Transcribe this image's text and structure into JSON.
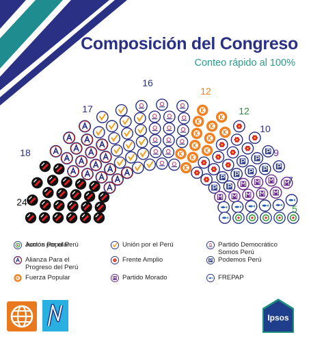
{
  "header": {
    "title": "Composición del Congreso",
    "subtitle": "Conteo rápido al 100%"
  },
  "colors": {
    "stripe_navy": "#2a3184",
    "stripe_teal": "#1f8d90",
    "title": "#2a3184",
    "subtitle": "#2a9a8a"
  },
  "chart_data": {
    "type": "parliament",
    "title": "Composición del Congreso",
    "subtitle": "Conteo rápido al 100%",
    "total_seats": 130,
    "series": [
      {
        "name": "Acción Popular",
        "seats": 24,
        "color": "#1a1a1a",
        "icon": "black-shovel-icon"
      },
      {
        "name": "Alianza Para el\nProgreso del Perú",
        "seats": 18,
        "color": "#2a3184",
        "icon": "app-a-icon"
      },
      {
        "name": "Unión por el Perú",
        "seats": 17,
        "color": "#f0a01e",
        "icon": "check-mark-icon"
      },
      {
        "name": "Partido Democrático\nSomos Perú",
        "seats": 16,
        "color": "#1f4e8c",
        "icon": "sun-logo-icon"
      },
      {
        "name": "Fuerza Popular",
        "seats": 12,
        "color": "#f08020",
        "icon": "k-icon"
      },
      {
        "name": "Frente Amplio",
        "seats": 12,
        "color": "#2e8b3d",
        "icon": "red-flower-icon"
      },
      {
        "name": "Podemos Perú",
        "seats": 10,
        "color": "#2f3f8c",
        "icon": "p-icon"
      },
      {
        "name": "Partido Morado",
        "seats": 9,
        "color": "#6a2a8c",
        "icon": "purple-m-icon"
      },
      {
        "name": "FREPAP",
        "seats": 7,
        "color": "#1f5fae",
        "icon": "fish-icon"
      },
      {
        "name": "Juntos por el Perú",
        "seats": 5,
        "color": "#2e9b3a",
        "icon": "jp-icon"
      }
    ],
    "seat_labels": [
      "24",
      "18",
      "17",
      "16",
      "12",
      "12",
      "10",
      "9",
      "7",
      "5"
    ]
  },
  "legend": {
    "items": [
      {
        "label": "Acción Popular",
        "color": "#1a1a1a",
        "icon": "black-shovel-icon"
      },
      {
        "label": "Alianza Para el\nProgreso del Perú",
        "color": "#2a3184",
        "icon": "app-a-icon"
      },
      {
        "label": "Fuerza Popular",
        "color": "#f08020",
        "icon": "k-icon"
      },
      {
        "label": "Unión por el Perú",
        "color": "#f0a01e",
        "icon": "check-mark-icon"
      },
      {
        "label": "Frente Amplio",
        "color": "#2e8b3d",
        "icon": "red-flower-icon"
      },
      {
        "label": "Partido Morado",
        "color": "#6a2a8c",
        "icon": "purple-m-icon"
      },
      {
        "label": "Partido Democrático\nSomos Perú",
        "color": "#1f4e8c",
        "icon": "sun-logo-icon"
      },
      {
        "label": "Podemos Perú",
        "color": "#2f3f8c",
        "icon": "p-icon"
      },
      {
        "label": "FREPAP",
        "color": "#1f5fae",
        "icon": "fish-icon"
      },
      {
        "label": "Juntos por el Perú",
        "color": "#2e9b3a",
        "icon": "jp-icon"
      }
    ]
  },
  "footer": {
    "ipsos_text": "Ipsos"
  }
}
